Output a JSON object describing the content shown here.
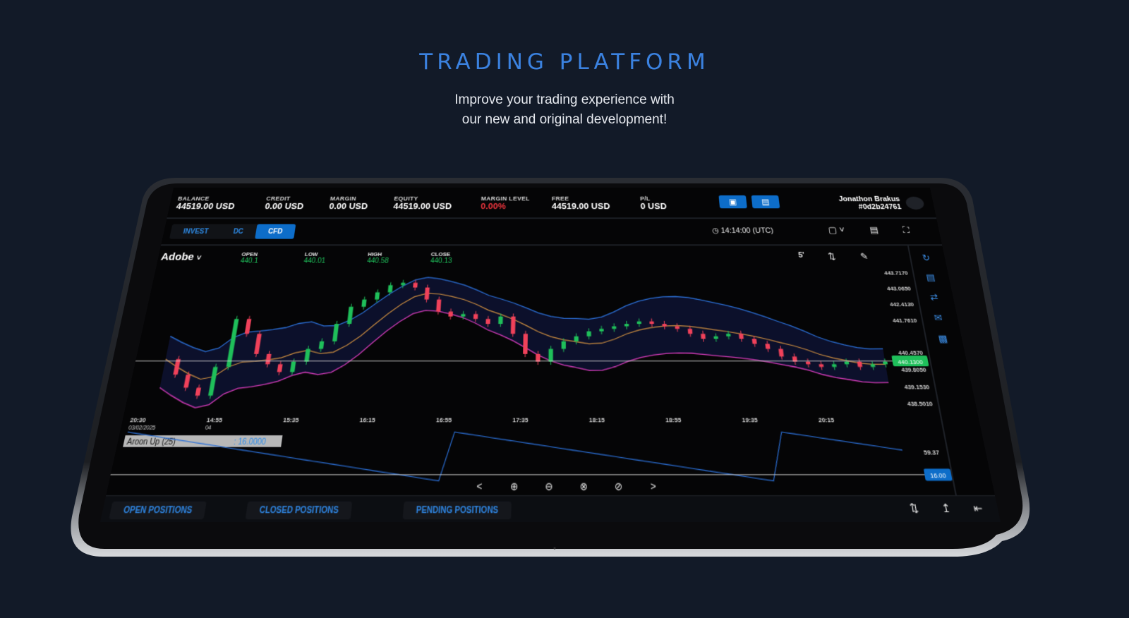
{
  "hero": {
    "title": "TRADING PLATFORM",
    "subtitle_line1": "Improve your trading experience with",
    "subtitle_line2": "our new and original development!"
  },
  "account": {
    "balance_label": "BALANCE",
    "balance_value": "44519.00 USD",
    "credit_label": "CREDIT",
    "credit_value": "0.00 USD",
    "margin_label": "MARGIN",
    "margin_value": "0.00 USD",
    "equity_label": "EQUITY",
    "equity_value": "44519.00 USD",
    "margin_level_label": "MARGIN LEVEL",
    "margin_level_value": "0.00%",
    "free_label": "FREE",
    "free_value": "44519.00 USD",
    "pl_label": "P/L",
    "pl_value": "0 USD"
  },
  "user": {
    "name": "Jonathon Brakus",
    "id": "#0d2b24761"
  },
  "tabs": [
    {
      "label": "INVEST"
    },
    {
      "label": "DC"
    },
    {
      "label": "CFD",
      "active": true
    }
  ],
  "clock": "14:14:00 (UTC)",
  "symbol": "Adobe",
  "ohlc": {
    "open_label": "OPEN",
    "open_value": "440.1",
    "low_label": "LOW",
    "low_value": "440.01",
    "high_label": "HIGH",
    "high_value": "440.58",
    "close_label": "CLOSE",
    "close_value": "440.13"
  },
  "timeframe": "5'",
  "price_axis": [
    "443.7170",
    "443.0650",
    "442.4130",
    "441.7610",
    "440.4570",
    "439.8050",
    "439.1530",
    "438.5010"
  ],
  "current_price": "440.1300",
  "time_axis": [
    "20:30",
    "14:55",
    "15:35",
    "16:15",
    "16:55",
    "17:35",
    "18:15",
    "18:55",
    "19:35",
    "20:15"
  ],
  "date_label": "03/02/2025",
  "date_label_2": "04",
  "indicator": {
    "name": "Aroon Up (25)",
    "value": "16.0000",
    "axis_top": "59.37",
    "current": "16.00"
  },
  "positions": [
    {
      "label": "OPEN POSITIONS"
    },
    {
      "label": "CLOSED POSITIONS"
    },
    {
      "label": "PENDING POSITIONS"
    }
  ],
  "colors": {
    "accent": "#0d6dc9",
    "bull": "#1fbf5a",
    "bear": "#f0415a",
    "upper_band": "#2b6fd6",
    "lower_band": "#d23bb8",
    "ma": "#c98b3f"
  }
}
